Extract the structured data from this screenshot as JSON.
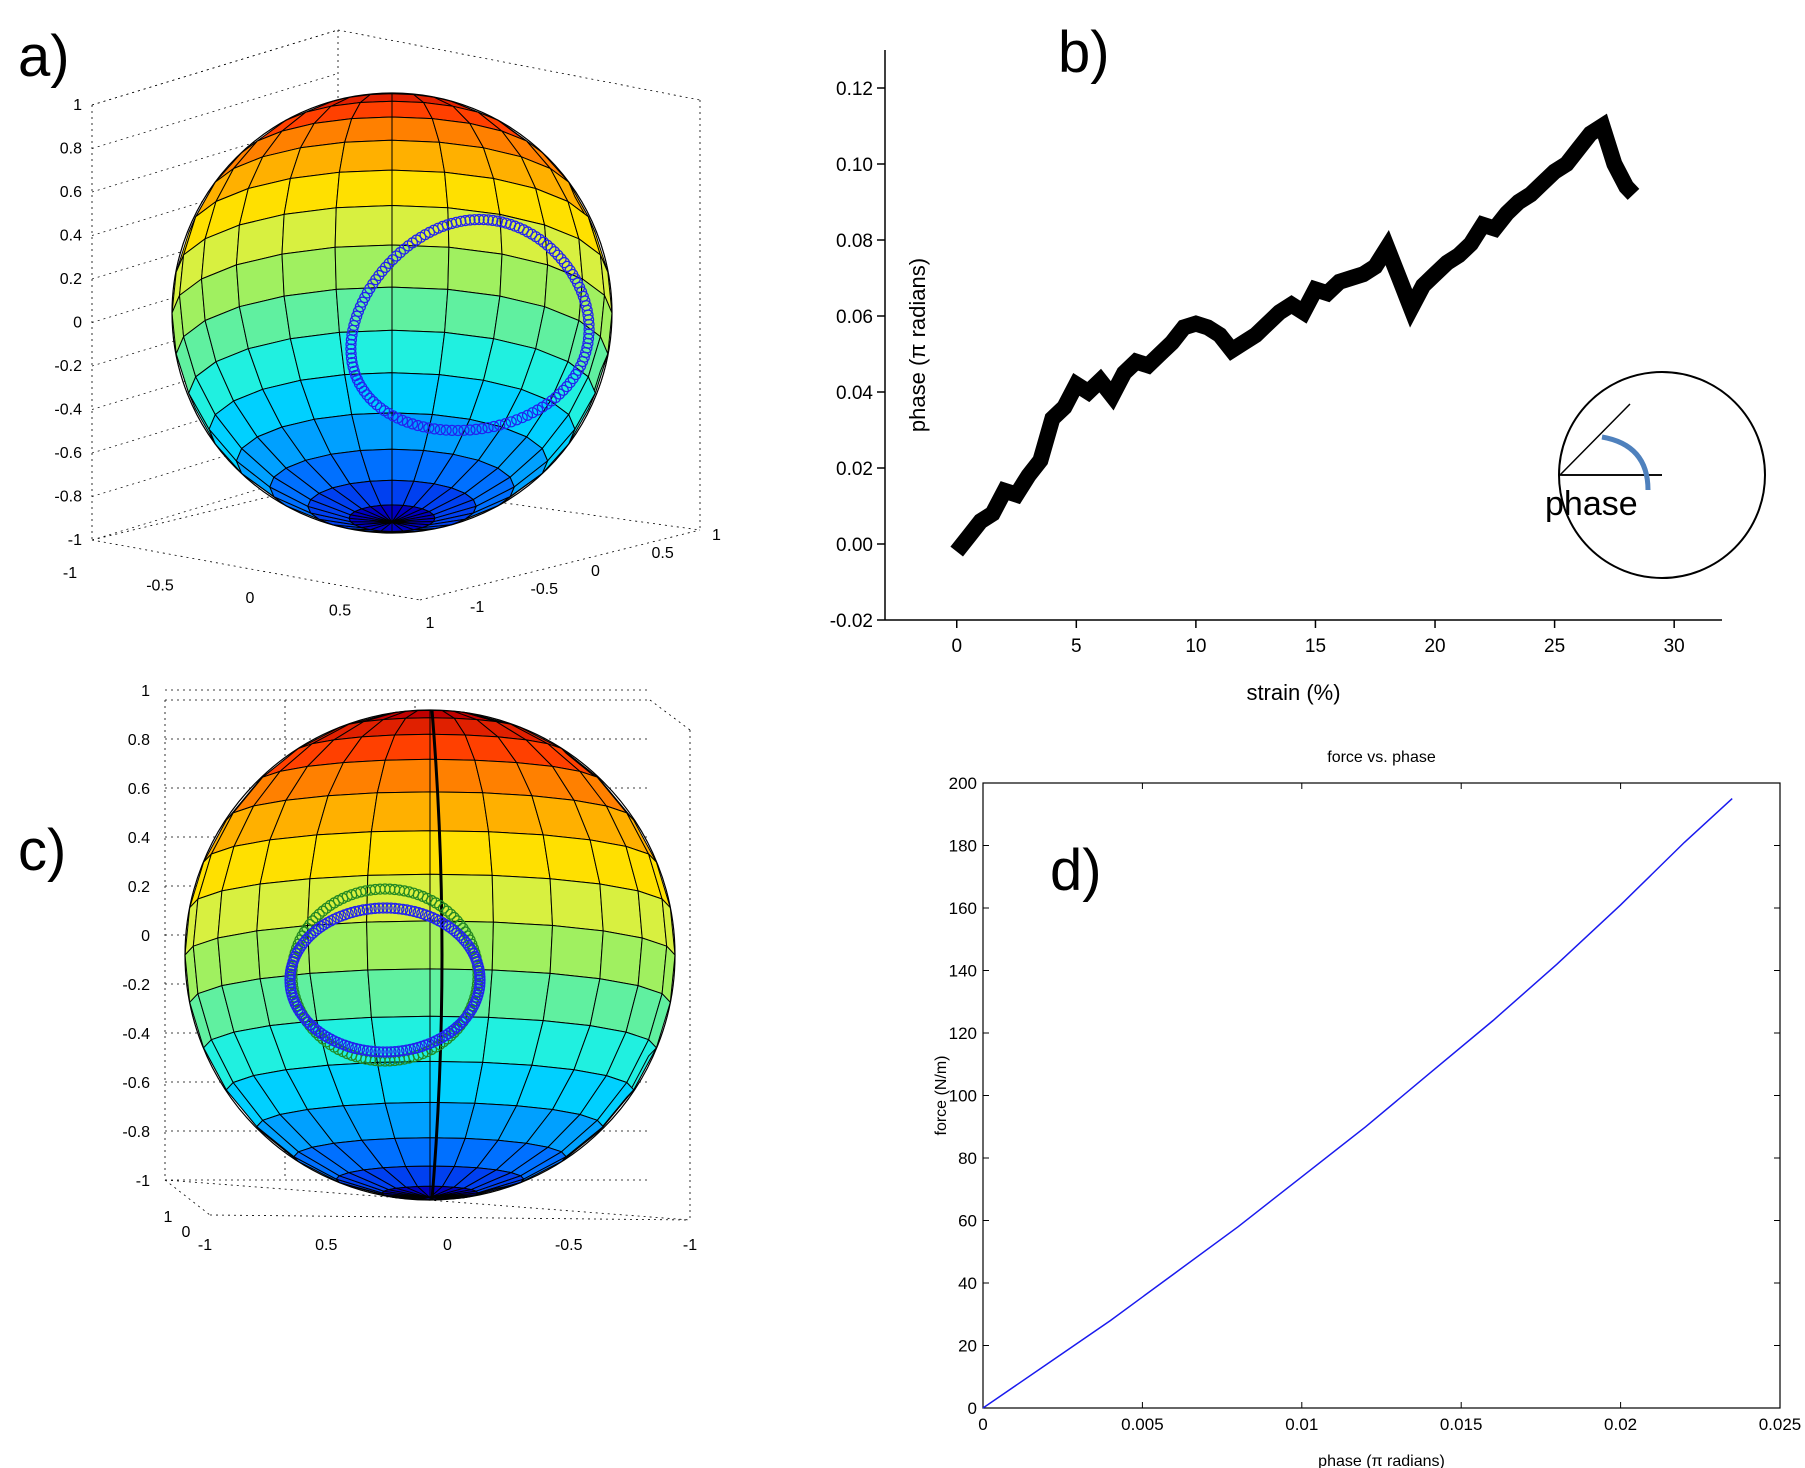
{
  "panels": {
    "a": {
      "letter": "a)"
    },
    "b": {
      "letter": "b)"
    },
    "c": {
      "letter": "c)"
    },
    "d": {
      "letter": "d)"
    }
  },
  "inset": {
    "label": "phase"
  },
  "colors": {
    "sphere_bands": [
      "#8b0000",
      "#c00000",
      "#e02000",
      "#ff4000",
      "#ff8000",
      "#ffb000",
      "#ffe000",
      "#d8f040",
      "#a0f060",
      "#60f0a0",
      "#20f0e0",
      "#00d0ff",
      "#00a0ff",
      "#0070ff",
      "#0040f0",
      "#0000c0"
    ],
    "trajectory_blue": "#2222ee",
    "trajectory_green": "#228822",
    "line_b": "#000000",
    "line_d": "#1a1aee",
    "inset_arc": "#4f81bd"
  },
  "chart_data": [
    {
      "id": "a",
      "type": "scatter",
      "description_kind": "3d-sphere",
      "zticks": [
        "1",
        "0.8",
        "0.6",
        "0.4",
        "0.2",
        "0",
        "-0.2",
        "-0.4",
        "-0.6",
        "-0.8",
        "-1"
      ],
      "xticks": [
        "-1",
        "-0.5",
        "0",
        "0.5",
        "1"
      ],
      "yticks": [
        "-1",
        "-0.5",
        "0",
        "0.5",
        "1"
      ],
      "zlim": [
        -1,
        1
      ],
      "xlim": [
        -1,
        1
      ],
      "ylim": [
        -1,
        1
      ],
      "grid": true
    },
    {
      "id": "b",
      "type": "line",
      "xlabel": "strain (%)",
      "ylabel": "phase (π radians)",
      "xlim": [
        -3,
        32
      ],
      "ylim": [
        -0.02,
        0.13
      ],
      "xticks": [
        "0",
        "5",
        "10",
        "15",
        "20",
        "25",
        "30"
      ],
      "yticks": [
        "-0.02",
        "0.00",
        "0.02",
        "0.04",
        "0.06",
        "0.08",
        "0.10",
        "0.12"
      ],
      "x": [
        0,
        0.5,
        1,
        1.5,
        2,
        2.5,
        3,
        3.5,
        4,
        4.5,
        5,
        5.5,
        6,
        6.5,
        7,
        7.5,
        8,
        8.5,
        9,
        9.5,
        10,
        10.5,
        11,
        11.5,
        12,
        12.5,
        13,
        13.5,
        14,
        14.5,
        15,
        15.5,
        16,
        16.5,
        17,
        17.5,
        18,
        18.5,
        19,
        19.5,
        20,
        20.5,
        21,
        21.5,
        22,
        22.5,
        23,
        23.5,
        24,
        24.5,
        25,
        25.5,
        26,
        26.5,
        27,
        27.5,
        28,
        28.3
      ],
      "y": [
        -0.002,
        0.002,
        0.006,
        0.008,
        0.014,
        0.013,
        0.018,
        0.022,
        0.033,
        0.036,
        0.042,
        0.04,
        0.043,
        0.039,
        0.045,
        0.048,
        0.047,
        0.05,
        0.053,
        0.057,
        0.058,
        0.057,
        0.055,
        0.051,
        0.053,
        0.055,
        0.058,
        0.061,
        0.063,
        0.061,
        0.067,
        0.066,
        0.069,
        0.07,
        0.071,
        0.073,
        0.078,
        0.07,
        0.062,
        0.068,
        0.071,
        0.074,
        0.076,
        0.079,
        0.084,
        0.083,
        0.087,
        0.09,
        0.092,
        0.095,
        0.098,
        0.1,
        0.104,
        0.108,
        0.11,
        0.1,
        0.094,
        0.092
      ]
    },
    {
      "id": "c",
      "type": "scatter",
      "description_kind": "3d-sphere",
      "zticks": [
        "1",
        "0.8",
        "0.6",
        "0.4",
        "0.2",
        "0",
        "-0.2",
        "-0.4",
        "-0.6",
        "-0.8",
        "-1"
      ],
      "xticks": [
        "-1",
        "0.5",
        "0",
        "-0.5",
        "-1"
      ],
      "yticks": [
        "1",
        "0"
      ],
      "zlim": [
        -1,
        1
      ],
      "xlim": [
        -1,
        1
      ],
      "grid": true
    },
    {
      "id": "d",
      "type": "line",
      "title": "force vs. phase",
      "xlabel": "phase (π radians)",
      "ylabel": "force (N/m)",
      "xlim": [
        0,
        0.025
      ],
      "ylim": [
        0,
        200
      ],
      "xticks": [
        "0",
        "0.005",
        "0.01",
        "0.015",
        "0.02",
        "0.025"
      ],
      "yticks": [
        "0",
        "20",
        "40",
        "60",
        "80",
        "100",
        "120",
        "140",
        "160",
        "180",
        "200"
      ],
      "x": [
        0,
        0.002,
        0.004,
        0.006,
        0.008,
        0.01,
        0.012,
        0.014,
        0.016,
        0.018,
        0.02,
        0.022,
        0.0235
      ],
      "y": [
        0,
        14,
        28,
        43,
        58,
        74,
        90,
        107,
        124,
        142,
        161,
        181,
        195
      ]
    }
  ]
}
